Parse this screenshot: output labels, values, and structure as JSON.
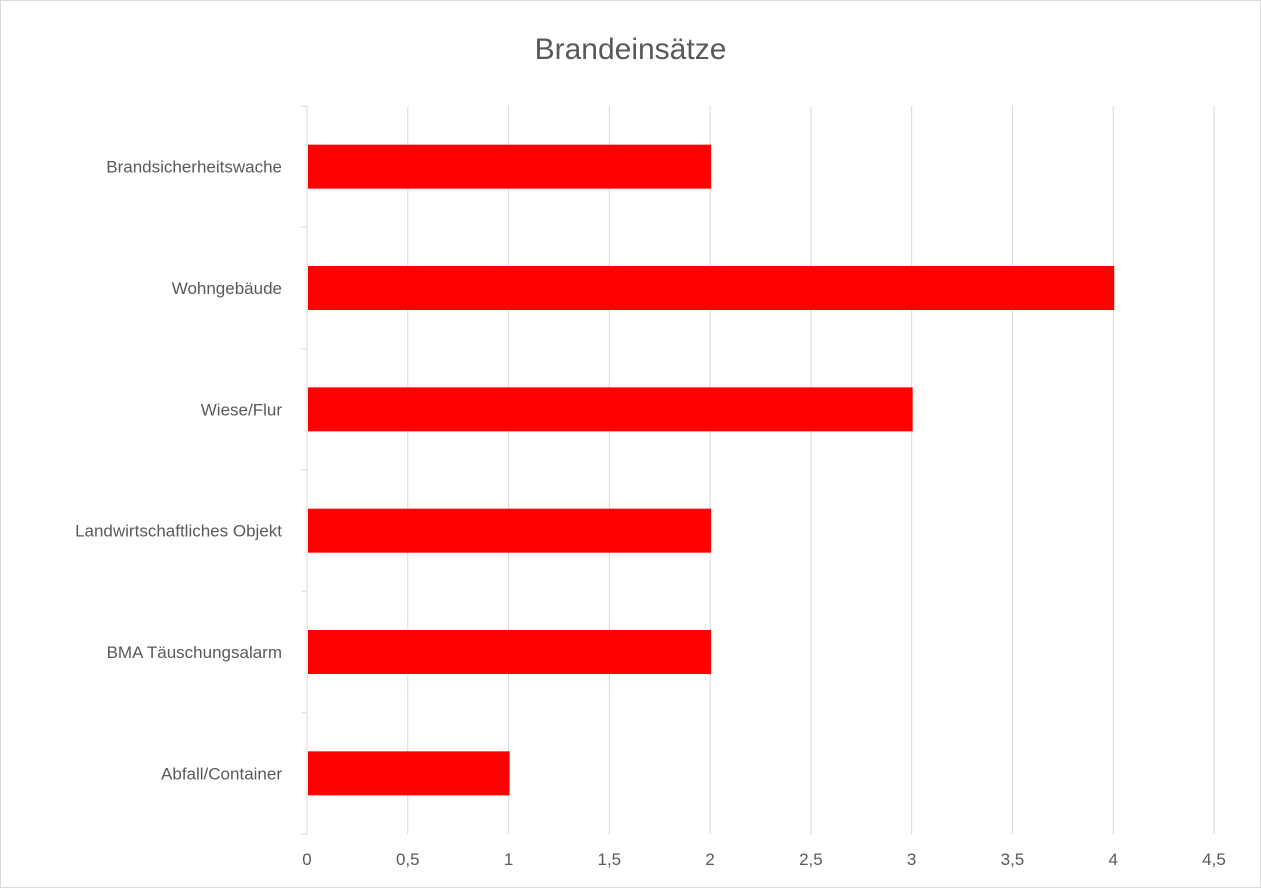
{
  "chart_data": {
    "type": "bar",
    "orientation": "horizontal",
    "title": "Brandeinsätze",
    "categories": [
      "Brandsicherheitswache",
      "Wohngebäude",
      "Wiese/Flur",
      "Landwirtschaftliches Objekt",
      "BMA Täuschungsalarm",
      "Abfall/Container"
    ],
    "values": [
      2,
      4,
      3,
      2,
      2,
      1
    ],
    "xlim": [
      0,
      4.5
    ],
    "x_ticks": [
      "0",
      "0,5",
      "1",
      "1,5",
      "2",
      "2,5",
      "3",
      "3,5",
      "4",
      "4,5"
    ],
    "grid": "vertical",
    "legend": "none",
    "bar_color": "#ff0000",
    "grid_color": "#d9d9d9"
  }
}
